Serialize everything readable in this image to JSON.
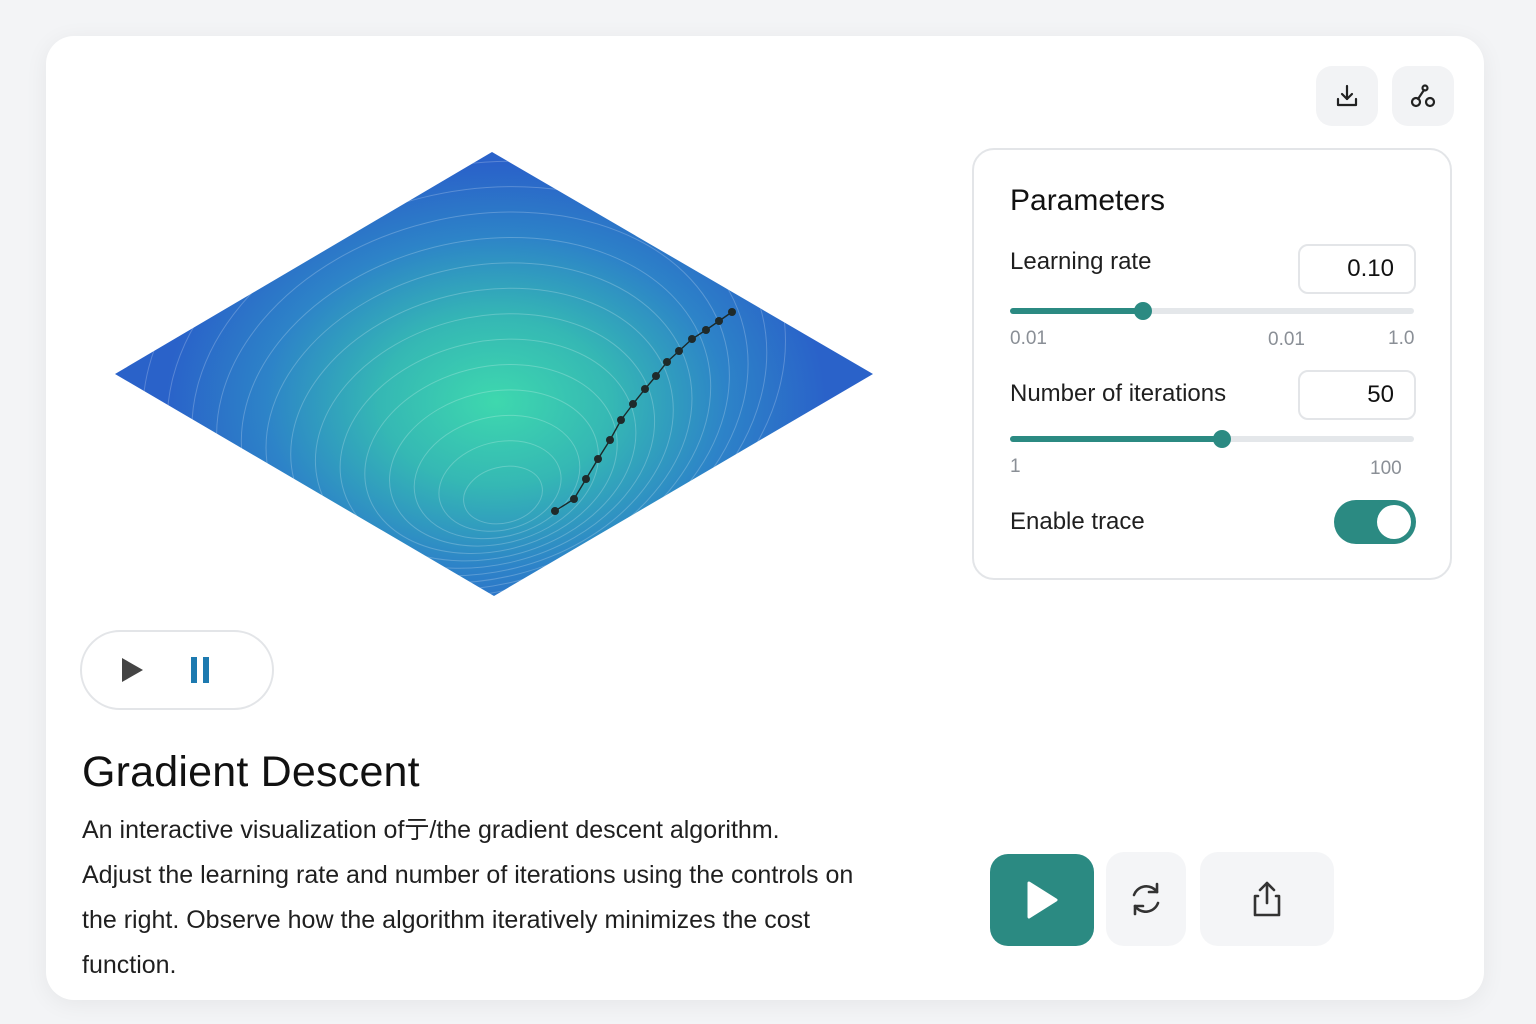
{
  "header": {
    "download_icon": "download-icon",
    "graph_icon": "graph-icon"
  },
  "transport": {
    "play_icon": "play-icon",
    "pause_icon": "pause-icon"
  },
  "content": {
    "title": "Gradient Descent",
    "description_lines": [
      "An interactive visualization of亍/the gradient descent algorithm.",
      "Adjust the learning rate and number of iterations using the controls on",
      "the right. Observe how the algorithm iteratively minimizes the cost",
      "function."
    ]
  },
  "parameters": {
    "title": "Parameters",
    "learning_rate": {
      "label": "Learning rate",
      "value": "0.10",
      "min_label": "0.01",
      "mid_label": "0.01",
      "max_label": "1.0",
      "position_fraction": 0.33
    },
    "iterations": {
      "label": "Number of iterations",
      "value": "50",
      "min_label": "1",
      "max_label": "100",
      "position_fraction": 0.525
    },
    "trace": {
      "label": "Enable trace",
      "enabled": true
    }
  },
  "actions": {
    "play_icon": "play-icon",
    "reset_icon": "refresh-icon",
    "share_icon": "share-icon"
  },
  "colors": {
    "accent": "#2b8a82",
    "surface_outer": "#2a62c9",
    "surface_center": "#3dd6b0"
  }
}
